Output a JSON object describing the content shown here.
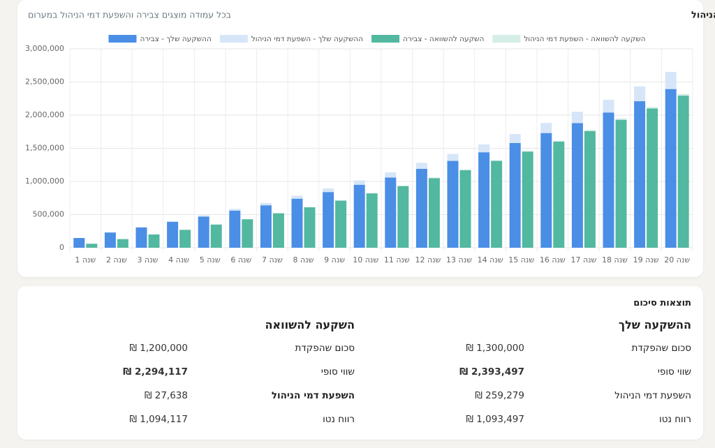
{
  "header": {
    "title": "צמיחת ההשקעה + השפעת דמי הניהול",
    "subtitle": "בכל עמודה מוצגים צבירה והשפעת דמי הניהול במערום"
  },
  "chart_data": {
    "type": "stacked-bar",
    "categories": [
      "שנה 1",
      "שנה 2",
      "שנה 3",
      "שנה 4",
      "שנה 5",
      "שנה 6",
      "שנה 7",
      "שנה 8",
      "שנה 9",
      "שנה 10",
      "שנה 11",
      "שנה 12",
      "שנה 13",
      "שנה 14",
      "שנה 15",
      "שנה 16",
      "שנה 17",
      "שנה 18",
      "שנה 19",
      "שנה 20"
    ],
    "series": [
      {
        "name": "ההשקעה שלך - צבירה",
        "color": "#4a8ee6",
        "stack": 0,
        "values": [
          147000,
          230000,
          305000,
          390000,
          470000,
          560000,
          640000,
          740000,
          840000,
          950000,
          1060000,
          1190000,
          1310000,
          1440000,
          1580000,
          1730000,
          1880000,
          2040000,
          2210000,
          2393497
        ]
      },
      {
        "name": "ההשקעה שלך - השפעת דמי הניהול",
        "color": "#d6e6f8",
        "stack": 0,
        "values": [
          1000,
          4000,
          8000,
          13000,
          20000,
          27000,
          35000,
          44000,
          54000,
          65000,
          77000,
          90000,
          104000,
          119000,
          135000,
          152000,
          171000,
          192000,
          224000,
          259279
        ]
      },
      {
        "name": "השקעה להשוואה - צבירה",
        "color": "#52b8a0",
        "stack": 1,
        "values": [
          60000,
          130000,
          200000,
          270000,
          350000,
          430000,
          520000,
          610000,
          710000,
          820000,
          930000,
          1050000,
          1170000,
          1310000,
          1450000,
          1600000,
          1760000,
          1930000,
          2100000,
          2294117
        ]
      },
      {
        "name": "השקעה להשוואה - השפעת דמי הניהול",
        "color": "#d5efe8",
        "stack": 1,
        "values": [
          100,
          400,
          800,
          1300,
          2000,
          2700,
          3500,
          4400,
          5400,
          6500,
          7700,
          9000,
          10400,
          11900,
          13500,
          15200,
          17100,
          19200,
          23000,
          27638
        ]
      }
    ],
    "ylim": [
      0,
      3000000
    ],
    "yticks": [
      0,
      {
        "value": 500000,
        "label": "500,000"
      },
      {
        "value": 1000000,
        "label": "1,000,000"
      },
      {
        "value": 1500000,
        "label": "1,500,000"
      },
      {
        "value": 2000000,
        "label": "2,000,000"
      },
      {
        "value": 2500000,
        "label": "2,500,000"
      },
      {
        "value": 3000000,
        "label": "3,000,000"
      }
    ],
    "grid": true
  },
  "summary": {
    "title": "תוצאות סיכום",
    "columns": [
      {
        "title": "ההשקעה שלך",
        "rows": [
          {
            "label": "סכום שהפקדת",
            "value": "₪ 1,300,000"
          },
          {
            "label": "שווי סופי",
            "value": "₪ 2,393,497"
          },
          {
            "label": "השפעת דמי הניהול",
            "value": "₪ 259,279"
          },
          {
            "label": "רווח נטו",
            "value": "₪ 1,093,497"
          }
        ]
      },
      {
        "title": "השקעה להשוואה",
        "rows": [
          {
            "label": "סכום שהפקדת",
            "value": "₪ 1,200,000"
          },
          {
            "label": "שווי סופי",
            "value": "₪ 2,294,117"
          },
          {
            "label": "השפעת דמי הניהול",
            "value": "₪ 27,638"
          },
          {
            "label": "רווח נטו",
            "value": "₪ 1,094,117"
          }
        ]
      }
    ]
  }
}
